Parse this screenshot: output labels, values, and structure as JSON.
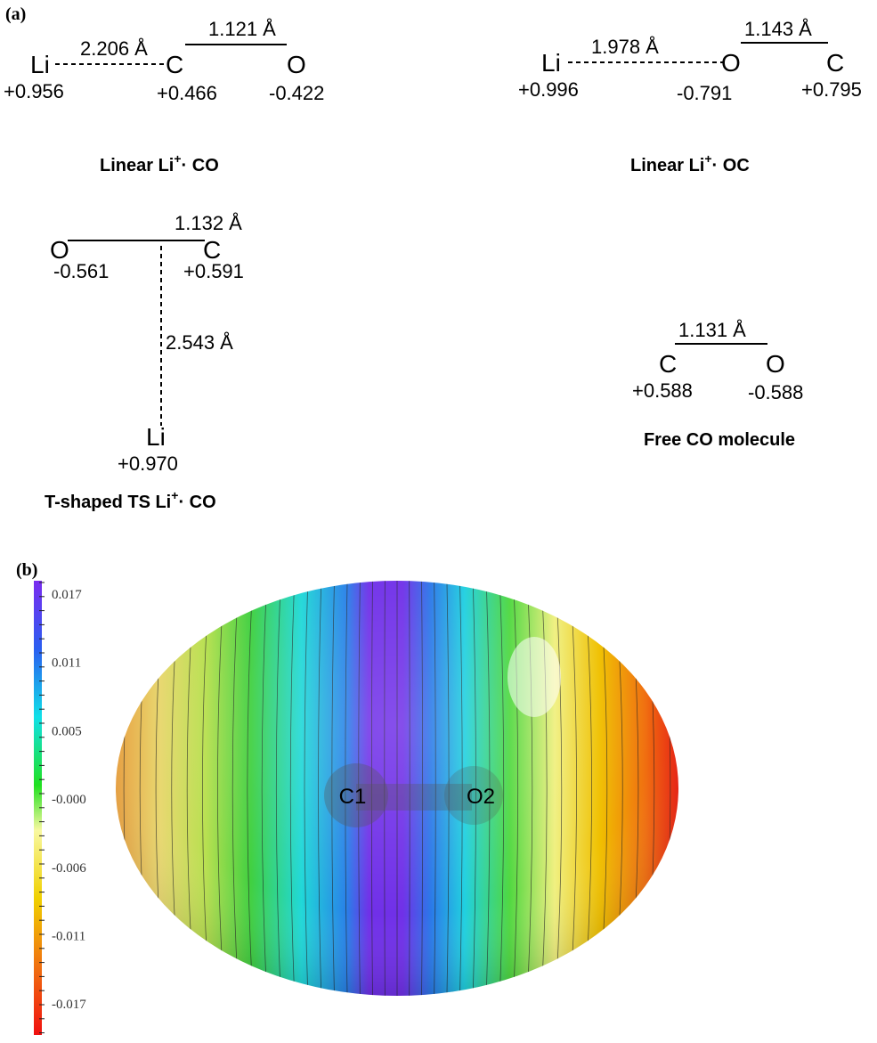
{
  "panel_a": {
    "label": "(a)",
    "linear_li_co": {
      "atoms": [
        "Li",
        "C",
        "O"
      ],
      "charges": [
        "+0.956",
        "+0.466",
        "-0.422"
      ],
      "distances": [
        "2.206 Å",
        "1.121 Å"
      ],
      "title": {
        "prefix": "Linear  Li",
        "sup": "+",
        "rest": "· CO"
      }
    },
    "linear_li_oc": {
      "atoms": [
        "Li",
        "O",
        "C"
      ],
      "charges": [
        "+0.996",
        "-0.791",
        "+0.795"
      ],
      "distances": [
        "1.978 Å",
        "1.143 Å"
      ],
      "title": {
        "prefix": "Linear  Li",
        "sup": "+",
        "rest": "· OC"
      }
    },
    "t_shaped": {
      "atoms": [
        "O",
        "C",
        "Li"
      ],
      "charges": [
        "-0.561",
        "+0.591",
        "+0.970"
      ],
      "distances": [
        "1.132 Å",
        "2.543 Å"
      ],
      "title": {
        "prefix": "T-shaped TS  Li",
        "sup": "+",
        "rest": "· CO"
      }
    },
    "free_co": {
      "atoms": [
        "C",
        "O"
      ],
      "charges": [
        "+0.588",
        "-0.588"
      ],
      "distances": [
        "1.131 Å"
      ],
      "title": "Free CO molecule"
    }
  },
  "panel_b": {
    "label": "(b)",
    "colorbar_labels": [
      "0.017",
      "0.011",
      "0.005",
      "-0.000",
      "-0.006",
      "-0.011",
      "-0.017"
    ],
    "atom_labels": [
      "C1",
      "O2"
    ]
  }
}
